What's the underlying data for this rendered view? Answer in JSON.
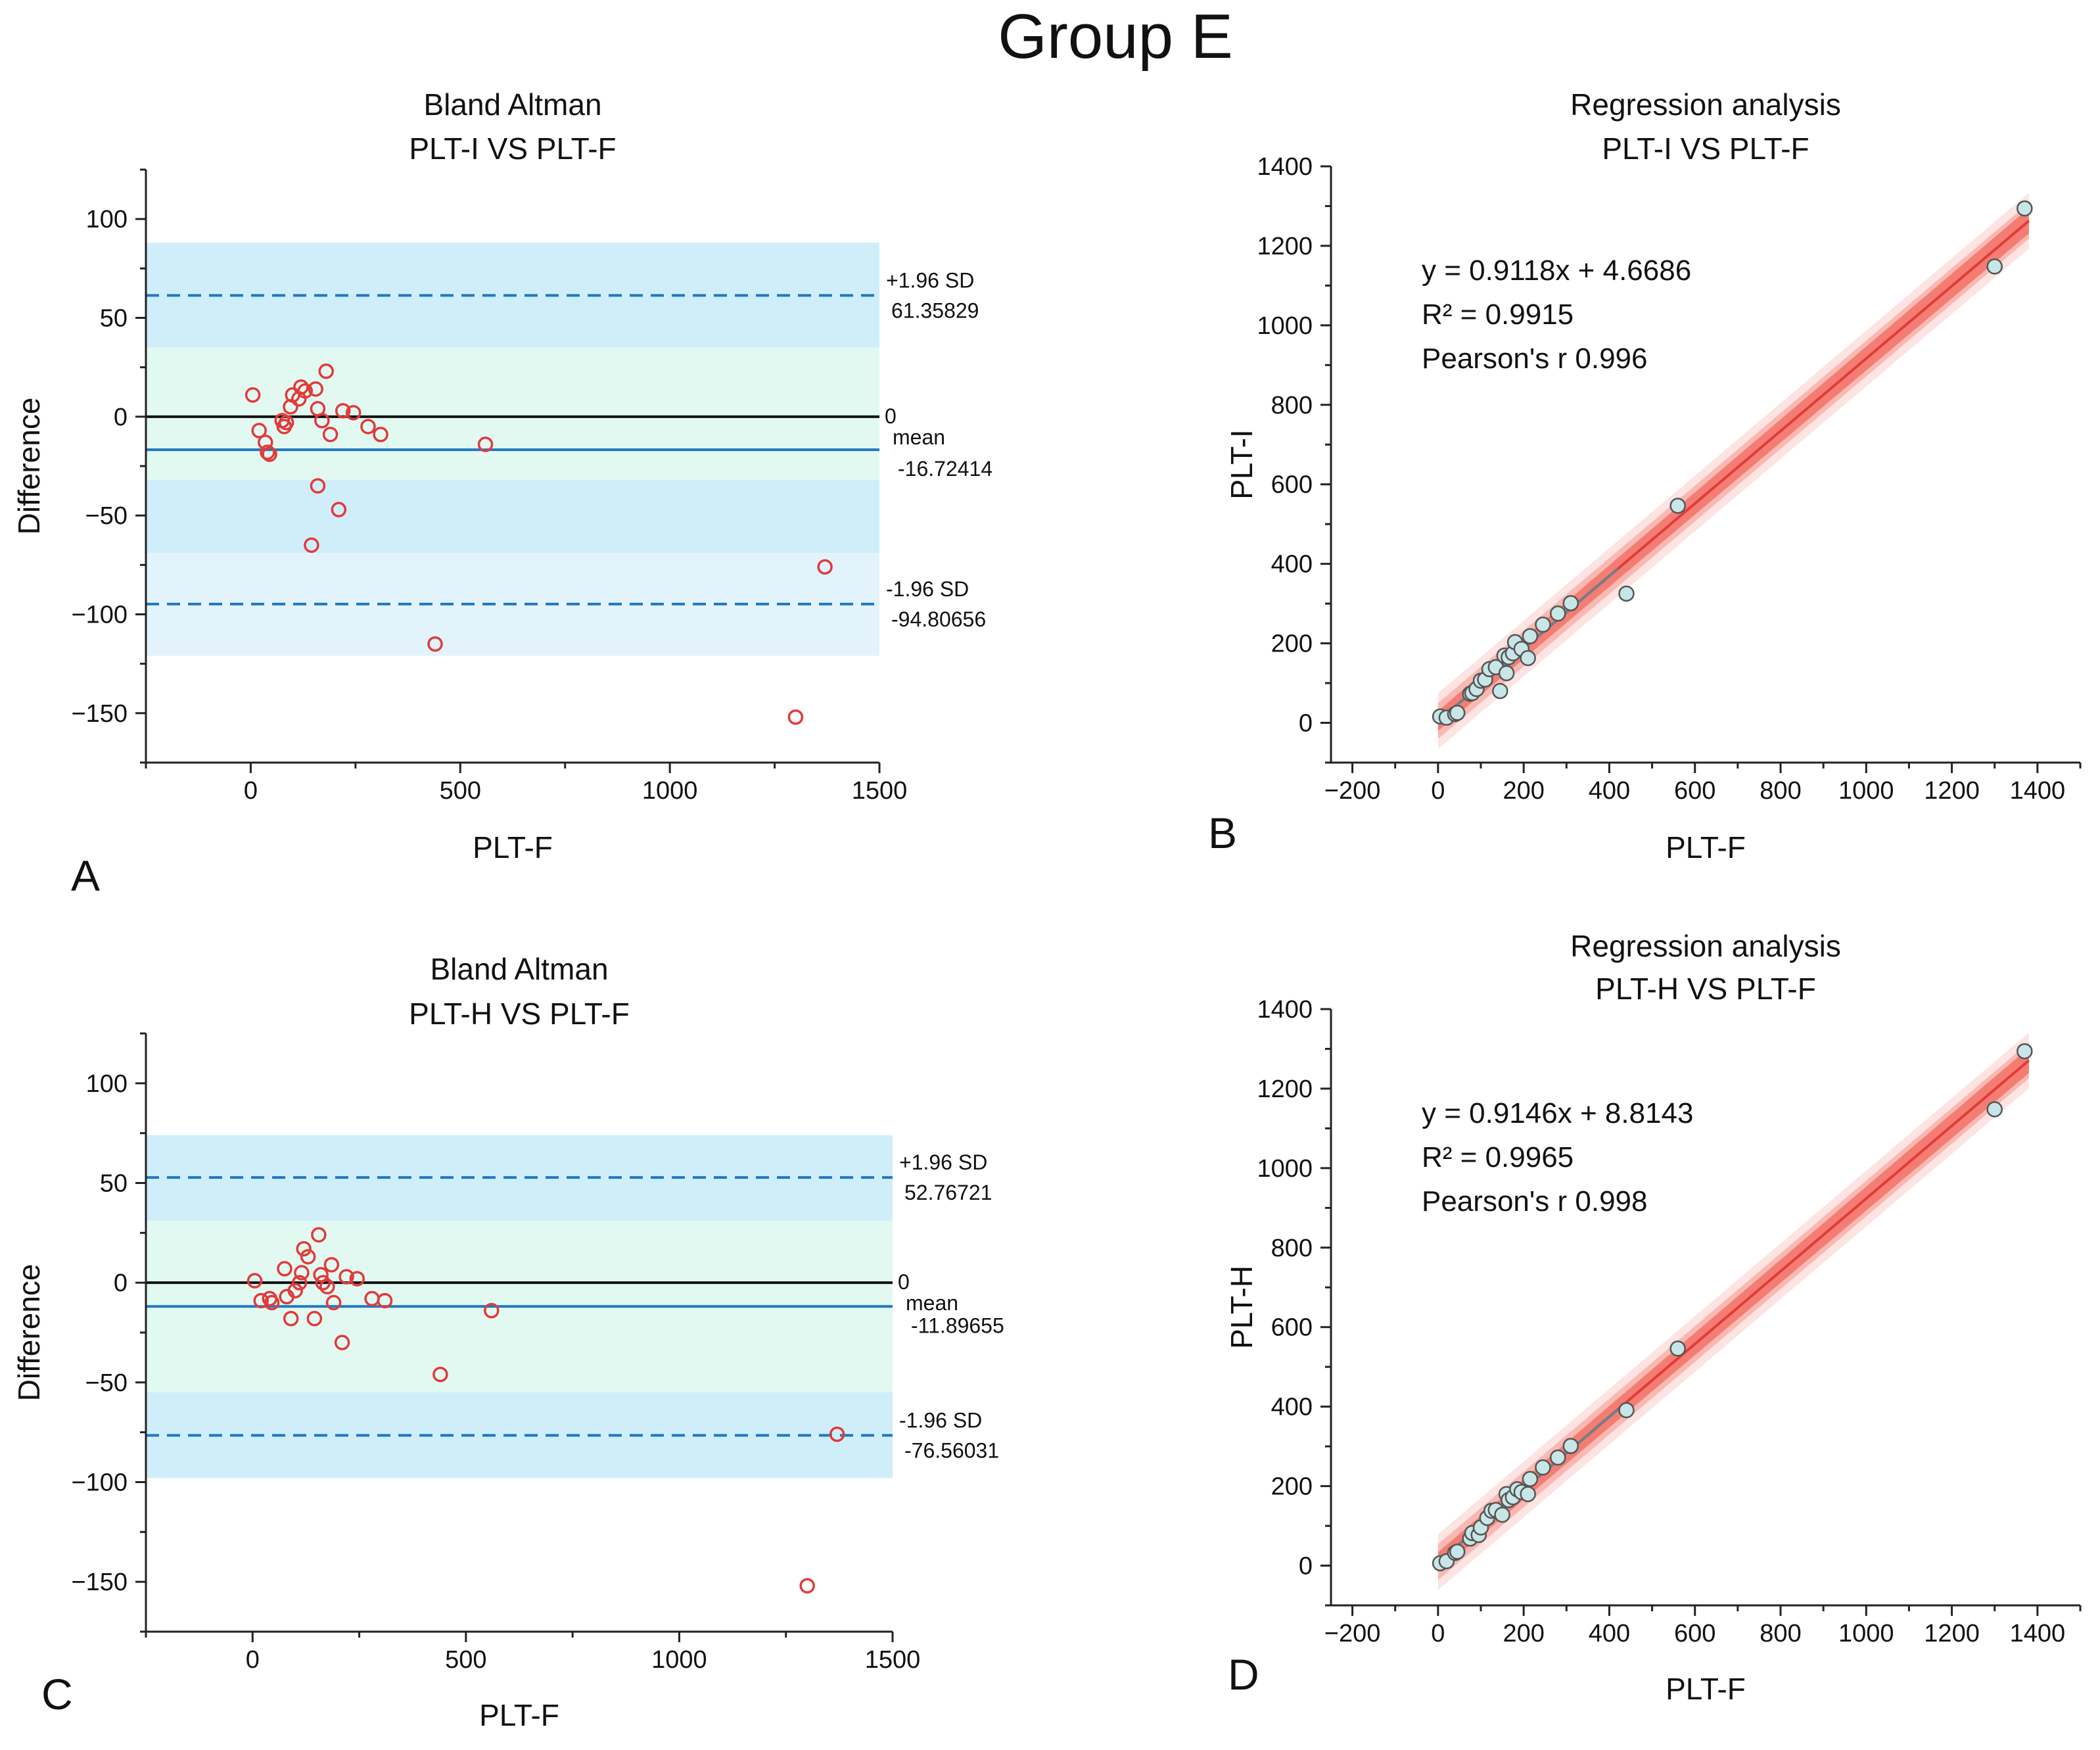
{
  "figure": {
    "title": "Group E",
    "colors": {
      "band_light_blue": "#e3f3fb",
      "band_blue": "#cfeef9",
      "band_green": "#e2f9f1",
      "sd_line": "#1f78c1",
      "mean_line": "#1f78c1",
      "zero_line": "#111111",
      "ba_marker": "#e23a3a",
      "reg_fill_outer": "#fde3e1",
      "reg_fill_mid": "#f9b8b2",
      "reg_fill_inner": "#f37d73",
      "reg_line": "#e23a3a",
      "reg_marker_fill": "#c8e6e8",
      "reg_marker_stroke": "#555555",
      "reg_fit_overlay": "#4a90a0"
    }
  },
  "chart_data": [
    {
      "panel": "A",
      "type": "scatter",
      "kind": "bland-altman",
      "title": "Bland Altman",
      "subtitle": "PLT-I VS PLT-F",
      "xlabel": "PLT-F",
      "ylabel": "Difference",
      "xlim": [
        -250,
        1500
      ],
      "ylim": [
        -175,
        125
      ],
      "xticks": [
        0,
        500,
        1000,
        1500
      ],
      "yticks": [
        100,
        50,
        0,
        -50,
        -100,
        -150
      ],
      "zero": 0,
      "mean": -16.72414,
      "upper_loa": 61.35829,
      "lower_loa": -94.80656,
      "bands": [
        {
          "from": 35,
          "to": 88,
          "kind": "blue"
        },
        {
          "from": -32,
          "to": 35,
          "kind": "green"
        },
        {
          "from": -69,
          "to": -32,
          "kind": "blue"
        },
        {
          "from": -121,
          "to": -69,
          "kind": "light_blue"
        }
      ],
      "labels": {
        "upper_title": "+1.96 SD",
        "upper_value": "61.35829",
        "zero": "0",
        "mean_title": "mean",
        "mean_value": "-16.72414",
        "lower_title": "-1.96 SD",
        "lower_value": "-94.80656"
      },
      "points": [
        {
          "x": 5,
          "y": 11
        },
        {
          "x": 20,
          "y": -7
        },
        {
          "x": 35,
          "y": -13
        },
        {
          "x": 40,
          "y": -18
        },
        {
          "x": 45,
          "y": -19
        },
        {
          "x": 75,
          "y": -2
        },
        {
          "x": 80,
          "y": -5
        },
        {
          "x": 85,
          "y": -3
        },
        {
          "x": 95,
          "y": 5
        },
        {
          "x": 100,
          "y": 11
        },
        {
          "x": 115,
          "y": 9
        },
        {
          "x": 120,
          "y": 15
        },
        {
          "x": 130,
          "y": 13
        },
        {
          "x": 145,
          "y": -65
        },
        {
          "x": 155,
          "y": 14
        },
        {
          "x": 160,
          "y": 4
        },
        {
          "x": 160,
          "y": -35
        },
        {
          "x": 170,
          "y": -2
        },
        {
          "x": 180,
          "y": 23
        },
        {
          "x": 190,
          "y": -9
        },
        {
          "x": 210,
          "y": -47
        },
        {
          "x": 220,
          "y": 3
        },
        {
          "x": 245,
          "y": 2
        },
        {
          "x": 280,
          "y": -5
        },
        {
          "x": 310,
          "y": -9
        },
        {
          "x": 560,
          "y": -14
        },
        {
          "x": 440,
          "y": -115
        },
        {
          "x": 1300,
          "y": -152
        },
        {
          "x": 1370,
          "y": -76
        }
      ]
    },
    {
      "panel": "B",
      "type": "scatter",
      "kind": "regression",
      "title": "Regression analysis",
      "subtitle": "PLT-I VS PLT-F",
      "xlabel": "PLT-F",
      "ylabel": "PLT-I",
      "xlim": [
        -250,
        1500
      ],
      "ylim": [
        -100,
        1400
      ],
      "xticks": [
        -200,
        0,
        200,
        400,
        600,
        800,
        1000,
        1200,
        1400
      ],
      "yticks": [
        0,
        200,
        400,
        600,
        800,
        1000,
        1200,
        1400
      ],
      "slope": 0.9118,
      "intercept": 4.6686,
      "annotations": {
        "equation": "y = 0.9118x + 4.6686",
        "r_squared": "R² = 0.9915",
        "pearson": "Pearson's r  0.996"
      },
      "points": [
        {
          "x": 5,
          "y": 16
        },
        {
          "x": 20,
          "y": 13
        },
        {
          "x": 40,
          "y": 22
        },
        {
          "x": 45,
          "y": 25
        },
        {
          "x": 75,
          "y": 73
        },
        {
          "x": 80,
          "y": 75
        },
        {
          "x": 90,
          "y": 85
        },
        {
          "x": 100,
          "y": 106
        },
        {
          "x": 110,
          "y": 109
        },
        {
          "x": 120,
          "y": 135
        },
        {
          "x": 135,
          "y": 140
        },
        {
          "x": 145,
          "y": 80
        },
        {
          "x": 155,
          "y": 169
        },
        {
          "x": 160,
          "y": 125
        },
        {
          "x": 165,
          "y": 165
        },
        {
          "x": 175,
          "y": 175
        },
        {
          "x": 180,
          "y": 203
        },
        {
          "x": 195,
          "y": 186
        },
        {
          "x": 210,
          "y": 163
        },
        {
          "x": 215,
          "y": 218
        },
        {
          "x": 245,
          "y": 247
        },
        {
          "x": 280,
          "y": 275
        },
        {
          "x": 310,
          "y": 301
        },
        {
          "x": 440,
          "y": 325
        },
        {
          "x": 560,
          "y": 546
        },
        {
          "x": 1300,
          "y": 1148
        },
        {
          "x": 1370,
          "y": 1294
        }
      ]
    },
    {
      "panel": "C",
      "type": "scatter",
      "kind": "bland-altman",
      "title": "Bland Altman",
      "subtitle": "PLT-H VS PLT-F",
      "xlabel": "PLT-F",
      "ylabel": "Difference",
      "xlim": [
        -250,
        1500
      ],
      "ylim": [
        -175,
        125
      ],
      "xticks": [
        0,
        500,
        1000,
        1500
      ],
      "yticks": [
        100,
        50,
        0,
        -50,
        -100,
        -150
      ],
      "zero": 0,
      "mean": -11.89655,
      "upper_loa": 52.76721,
      "lower_loa": -76.56031,
      "bands": [
        {
          "from": 74,
          "to": 31,
          "kind": "light_blue"
        },
        {
          "from": 31,
          "to": 74,
          "kind": "blue"
        },
        {
          "from": -55,
          "to": 31,
          "kind": "green"
        },
        {
          "from": -98,
          "to": -55,
          "kind": "blue"
        }
      ],
      "labels": {
        "upper_title": "+1.96 SD",
        "upper_value": "52.76721",
        "zero": "0",
        "mean_title": "mean",
        "mean_value": "-11.89655",
        "lower_title": "-1.96 SD",
        "lower_value": "-76.56031"
      },
      "points": [
        {
          "x": 5,
          "y": 1
        },
        {
          "x": 20,
          "y": -9
        },
        {
          "x": 40,
          "y": -8
        },
        {
          "x": 45,
          "y": -10
        },
        {
          "x": 75,
          "y": 7
        },
        {
          "x": 80,
          "y": -7
        },
        {
          "x": 90,
          "y": -18
        },
        {
          "x": 100,
          "y": -4
        },
        {
          "x": 110,
          "y": 0
        },
        {
          "x": 115,
          "y": 5
        },
        {
          "x": 120,
          "y": 17
        },
        {
          "x": 130,
          "y": 13
        },
        {
          "x": 145,
          "y": -18
        },
        {
          "x": 155,
          "y": 24
        },
        {
          "x": 160,
          "y": 4
        },
        {
          "x": 165,
          "y": 0
        },
        {
          "x": 175,
          "y": -2
        },
        {
          "x": 185,
          "y": 9
        },
        {
          "x": 190,
          "y": -10
        },
        {
          "x": 210,
          "y": -30
        },
        {
          "x": 220,
          "y": 3
        },
        {
          "x": 245,
          "y": 2
        },
        {
          "x": 280,
          "y": -8
        },
        {
          "x": 310,
          "y": -9
        },
        {
          "x": 440,
          "y": -46
        },
        {
          "x": 560,
          "y": -14
        },
        {
          "x": 1300,
          "y": -152
        },
        {
          "x": 1370,
          "y": -76
        }
      ]
    },
    {
      "panel": "D",
      "type": "scatter",
      "kind": "regression",
      "title": "Regression analysis",
      "subtitle": "PLT-H VS PLT-F",
      "xlabel": "PLT-F",
      "ylabel": "PLT-H",
      "xlim": [
        -250,
        1500
      ],
      "ylim": [
        -100,
        1400
      ],
      "xticks": [
        -200,
        0,
        200,
        400,
        600,
        800,
        1000,
        1200,
        1400
      ],
      "yticks": [
        0,
        200,
        400,
        600,
        800,
        1000,
        1200,
        1400
      ],
      "slope": 0.9146,
      "intercept": 8.8143,
      "annotations": {
        "equation": "y = 0.9146x + 8.8143",
        "r_squared": "R² = 0.9965",
        "pearson": "Pearson's r  0.998"
      },
      "points": [
        {
          "x": 5,
          "y": 6
        },
        {
          "x": 20,
          "y": 11
        },
        {
          "x": 40,
          "y": 32
        },
        {
          "x": 45,
          "y": 35
        },
        {
          "x": 75,
          "y": 68
        },
        {
          "x": 80,
          "y": 82
        },
        {
          "x": 95,
          "y": 77
        },
        {
          "x": 100,
          "y": 96
        },
        {
          "x": 115,
          "y": 120
        },
        {
          "x": 125,
          "y": 138
        },
        {
          "x": 135,
          "y": 140
        },
        {
          "x": 150,
          "y": 128
        },
        {
          "x": 160,
          "y": 180
        },
        {
          "x": 165,
          "y": 165
        },
        {
          "x": 175,
          "y": 172
        },
        {
          "x": 185,
          "y": 192
        },
        {
          "x": 195,
          "y": 185
        },
        {
          "x": 210,
          "y": 180
        },
        {
          "x": 215,
          "y": 218
        },
        {
          "x": 245,
          "y": 247
        },
        {
          "x": 280,
          "y": 272
        },
        {
          "x": 310,
          "y": 301
        },
        {
          "x": 440,
          "y": 391
        },
        {
          "x": 560,
          "y": 546
        },
        {
          "x": 1300,
          "y": 1148
        },
        {
          "x": 1370,
          "y": 1294
        }
      ]
    }
  ]
}
